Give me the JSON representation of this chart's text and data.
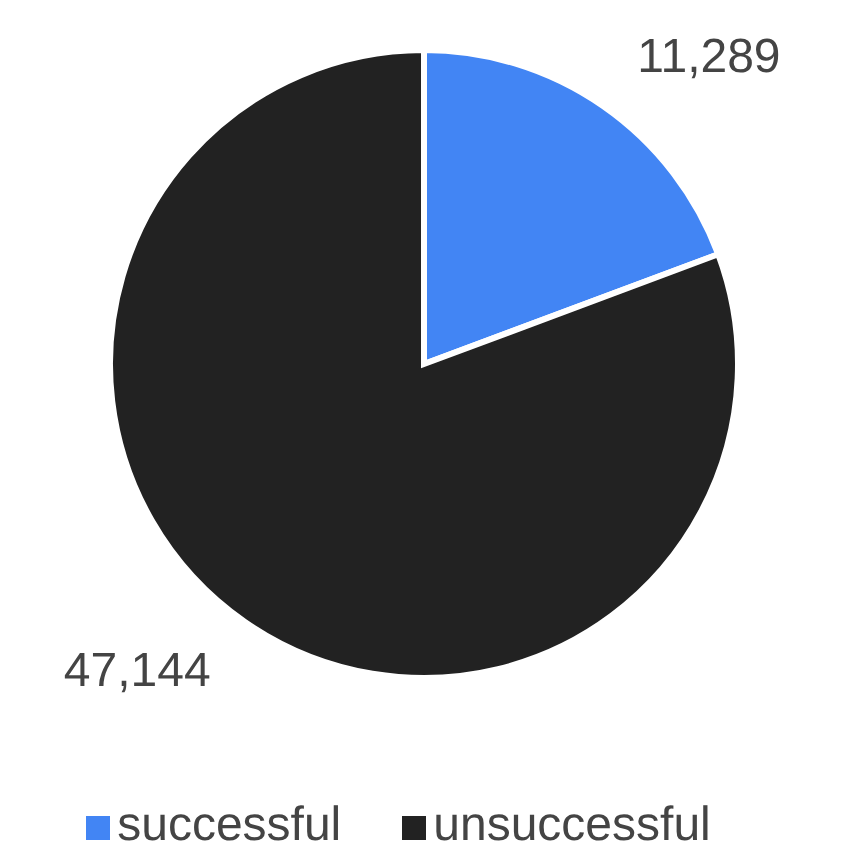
{
  "chart_data": {
    "type": "pie",
    "categories": [
      "successful",
      "unsuccessful"
    ],
    "values": [
      11289,
      47144
    ],
    "value_labels": [
      "11,289",
      "47,144"
    ],
    "colors": [
      "#4285f4",
      "#222222"
    ],
    "legend": "bottom"
  }
}
